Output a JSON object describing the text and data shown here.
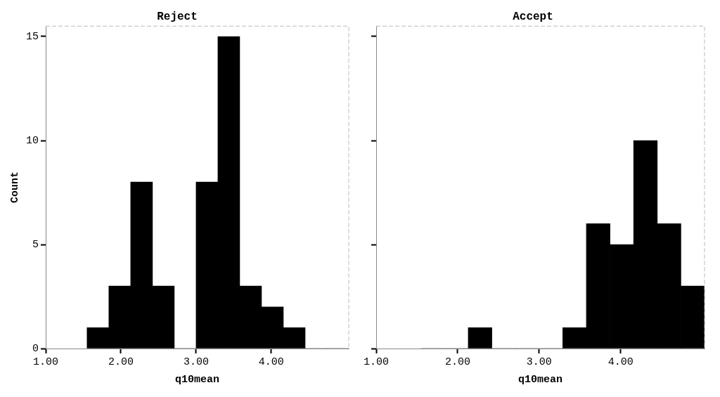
{
  "chart_data": [
    {
      "type": "histogram",
      "title": "Reject",
      "xlabel": "q10mean",
      "ylabel": "Count",
      "color": "#000000",
      "bins": [
        1.55,
        1.84,
        2.13,
        2.42,
        2.71,
        3.0,
        3.29,
        3.58,
        3.87,
        4.16,
        4.45,
        4.74,
        5.03
      ],
      "values": [
        1,
        3,
        8,
        3,
        0,
        8,
        15,
        3,
        2,
        1,
        0,
        0
      ],
      "xlim": [
        1,
        5.03
      ],
      "xticks": [
        {
          "value": 1,
          "label": "1.00"
        },
        {
          "value": 2,
          "label": "2.00"
        },
        {
          "value": 3,
          "label": "3.00"
        },
        {
          "value": 4,
          "label": "4.00"
        }
      ],
      "ylim": [
        0,
        15.5
      ],
      "yticks": [
        0,
        5,
        10,
        15
      ],
      "grid": false,
      "legend": false
    },
    {
      "type": "histogram",
      "title": "Accept",
      "xlabel": "q10mean",
      "color": "#000000",
      "bins": [
        1.55,
        1.84,
        2.13,
        2.42,
        2.71,
        3.0,
        3.29,
        3.58,
        3.87,
        4.16,
        4.45,
        4.74,
        5.03
      ],
      "values": [
        0,
        0,
        1,
        0,
        0,
        0,
        1,
        6,
        5,
        10,
        6,
        3
      ],
      "xlim": [
        1,
        5.03
      ],
      "xticks": [
        {
          "value": 1,
          "label": "1.00"
        },
        {
          "value": 2,
          "label": "2.00"
        },
        {
          "value": 3,
          "label": "3.00"
        },
        {
          "value": 4,
          "label": "4.00"
        }
      ],
      "ylim": [
        0,
        15.5
      ],
      "yticks": [
        0,
        5,
        10,
        15
      ],
      "tick_labels": "x",
      "grid": false,
      "legend": false
    }
  ]
}
